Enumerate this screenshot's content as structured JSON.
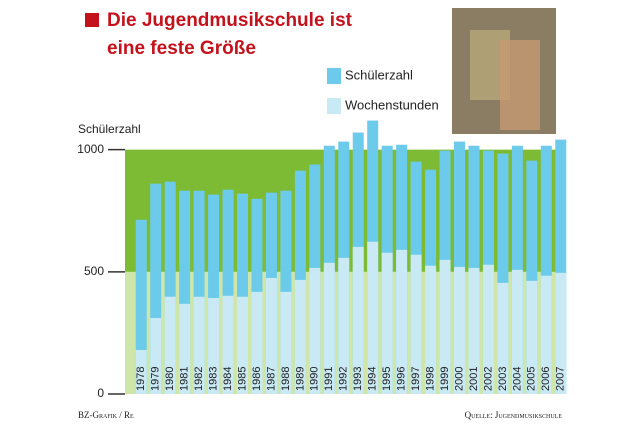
{
  "chart_data": {
    "type": "bar",
    "title": [
      "Die Jugendmusikschule ist",
      "eine feste Größe"
    ],
    "y_label": "Schülerzahl",
    "credit": "BZ-Grafik / Re",
    "source": "Quelle: Jugendmusikschule",
    "categories": [
      "1978",
      "1979",
      "1980",
      "1981",
      "1982",
      "1983",
      "1984",
      "1985",
      "1986",
      "1987",
      "1988",
      "1989",
      "1990",
      "1991",
      "1992",
      "1993",
      "1994",
      "1995",
      "1996",
      "1997",
      "1998",
      "1999",
      "2000",
      "2001",
      "2002",
      "2003",
      "2004",
      "2005",
      "2006",
      "2007"
    ],
    "series": [
      {
        "name": "Schülerzahl",
        "color": "#6ccbea",
        "values": [
          713,
          861,
          869,
          832,
          832,
          816,
          836,
          820,
          799,
          824,
          832,
          914,
          939,
          1016,
          1033,
          1070,
          1119,
          1016,
          1020,
          951,
          918,
          996,
          1033,
          1016,
          996,
          984,
          1016,
          955,
          1016,
          1041
        ]
      },
      {
        "name": "Wochenstunden",
        "color": "#c9eaf5",
        "values": [
          180,
          311,
          398,
          369,
          398,
          393,
          402,
          398,
          418,
          475,
          418,
          467,
          516,
          537,
          557,
          602,
          623,
          578,
          590,
          570,
          525,
          549,
          520,
          516,
          529,
          455,
          508,
          463,
          484,
          496
        ]
      }
    ],
    "ylim": [
      0,
      1150
    ],
    "yticks": [
      0,
      500,
      1000
    ],
    "band_colors": [
      "#cfe6a8",
      "#7dbb35"
    ]
  }
}
